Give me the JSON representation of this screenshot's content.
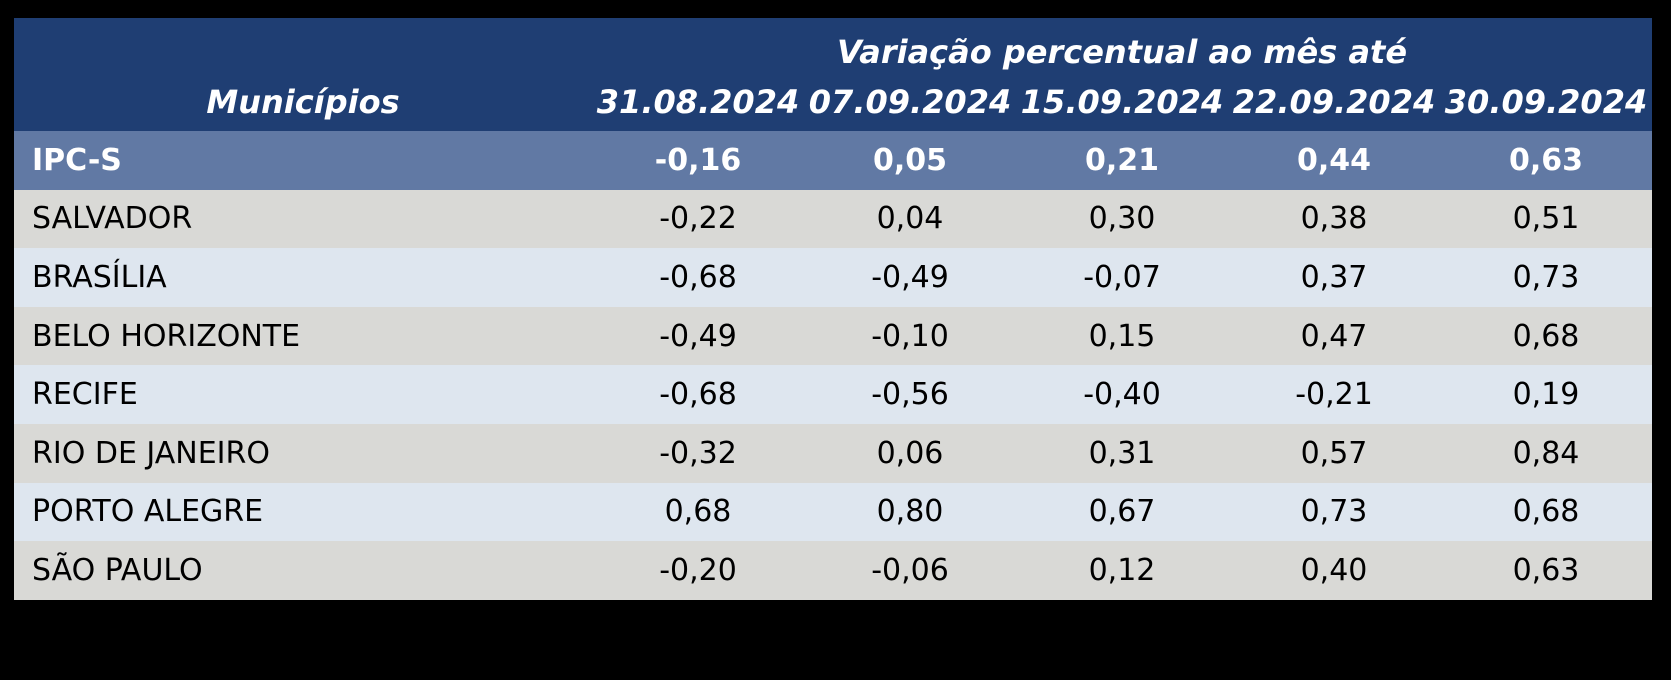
{
  "page": {
    "background_color": "#000000"
  },
  "table": {
    "title": "Variação percentual ao mês até",
    "name_header": "Municípios",
    "date_headers": [
      "31.08.2024",
      "07.09.2024",
      "15.09.2024",
      "22.09.2024",
      "30.09.2024"
    ],
    "highlight_row": {
      "label": "IPC-S",
      "values": [
        "-0,16",
        "0,05",
        "0,21",
        "0,44",
        "0,63"
      ]
    },
    "rows": [
      {
        "label": "SALVADOR",
        "values": [
          "-0,22",
          "0,04",
          "0,30",
          "0,38",
          "0,51"
        ]
      },
      {
        "label": "BRASÍLIA",
        "values": [
          "-0,68",
          "-0,49",
          "-0,07",
          "0,37",
          "0,73"
        ]
      },
      {
        "label": "BELO HORIZONTE",
        "values": [
          "-0,49",
          "-0,10",
          "0,15",
          "0,47",
          "0,68"
        ]
      },
      {
        "label": "RECIFE",
        "values": [
          "-0,68",
          "-0,56",
          "-0,40",
          "-0,21",
          "0,19"
        ]
      },
      {
        "label": "RIO DE JANEIRO",
        "values": [
          "-0,32",
          "0,06",
          "0,31",
          "0,57",
          "0,84"
        ]
      },
      {
        "label": "PORTO ALEGRE",
        "values": [
          "0,68",
          "0,80",
          "0,67",
          "0,73",
          "0,68"
        ]
      },
      {
        "label": "SÃO PAULO",
        "values": [
          "-0,20",
          "-0,06",
          "0,12",
          "0,40",
          "0,63"
        ]
      }
    ],
    "colors": {
      "header_background": "#1F3E73",
      "header_text": "#FFFFFF",
      "highlight_row_background": "#6179A4",
      "highlight_row_text": "#FFFFFF",
      "row_gray_background": "#D9D9D6",
      "row_blue_background": "#DEE6EF",
      "row_text": "#000000",
      "page_background": "#000000"
    }
  },
  "chart_data": {
    "type": "table",
    "title": "Variação percentual ao mês até",
    "row_label_header": "Municípios",
    "columns": [
      "31.08.2024",
      "07.09.2024",
      "15.09.2024",
      "22.09.2024",
      "30.09.2024"
    ],
    "rows": [
      {
        "label": "IPC-S",
        "values": [
          -0.16,
          0.05,
          0.21,
          0.44,
          0.63
        ]
      },
      {
        "label": "SALVADOR",
        "values": [
          -0.22,
          0.04,
          0.3,
          0.38,
          0.51
        ]
      },
      {
        "label": "BRASÍLIA",
        "values": [
          -0.68,
          -0.49,
          -0.07,
          0.37,
          0.73
        ]
      },
      {
        "label": "BELO HORIZONTE",
        "values": [
          -0.49,
          -0.1,
          0.15,
          0.47,
          0.68
        ]
      },
      {
        "label": "RECIFE",
        "values": [
          -0.68,
          -0.56,
          -0.4,
          -0.21,
          0.19
        ]
      },
      {
        "label": "RIO DE JANEIRO",
        "values": [
          -0.32,
          0.06,
          0.31,
          0.57,
          0.84
        ]
      },
      {
        "label": "PORTO ALEGRE",
        "values": [
          0.68,
          0.8,
          0.67,
          0.73,
          0.68
        ]
      },
      {
        "label": "SÃO PAULO",
        "values": [
          -0.2,
          -0.06,
          0.12,
          0.4,
          0.63
        ]
      }
    ],
    "value_unit": "percent",
    "decimal_separator": ","
  }
}
